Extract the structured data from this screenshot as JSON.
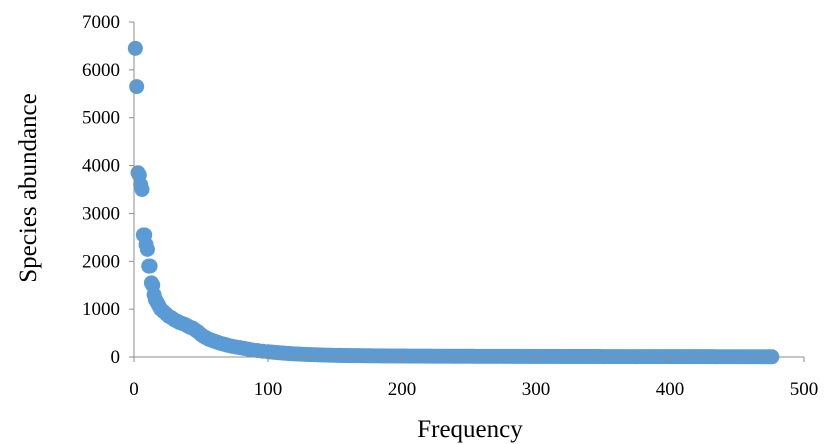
{
  "chart_data": {
    "type": "scatter",
    "title": "",
    "xlabel": "Frequency",
    "ylabel": "Species abundance",
    "xlim": [
      0,
      500
    ],
    "ylim": [
      0,
      7000
    ],
    "x_ticks": [
      "0",
      "100",
      "200",
      "300",
      "400",
      "500"
    ],
    "y_ticks": [
      "0",
      "1000",
      "2000",
      "3000",
      "4000",
      "5000",
      "6000",
      "7000"
    ],
    "grid": false,
    "legend": "none",
    "marker_color": "#5b9bd5",
    "series": [
      {
        "x": [
          1,
          2,
          3,
          4,
          5,
          6,
          7,
          8,
          9,
          10,
          11,
          12,
          13,
          14,
          15,
          16,
          17,
          18,
          19,
          20,
          22,
          24,
          26,
          28,
          30,
          32,
          34,
          36,
          38,
          40,
          42,
          44,
          46,
          48,
          50,
          52,
          54,
          56,
          58,
          60,
          62,
          64,
          66,
          68,
          70,
          73,
          76,
          79,
          82,
          85,
          88,
          92,
          96,
          100,
          104,
          108,
          112,
          116,
          120,
          125,
          130,
          135,
          140,
          145,
          150,
          160,
          170,
          180,
          190,
          200,
          215,
          230,
          245,
          260,
          275,
          290,
          305,
          320,
          335,
          350,
          365,
          380,
          395,
          410,
          425,
          440,
          455,
          470,
          476
        ],
        "y": [
          6450,
          5650,
          3850,
          3800,
          3600,
          3500,
          2550,
          2550,
          2350,
          2250,
          1900,
          1900,
          1550,
          1500,
          1300,
          1200,
          1150,
          1100,
          1050,
          1000,
          950,
          900,
          850,
          820,
          780,
          750,
          720,
          700,
          680,
          650,
          620,
          600,
          560,
          520,
          470,
          430,
          400,
          370,
          350,
          330,
          310,
          290,
          275,
          260,
          245,
          225,
          210,
          195,
          180,
          165,
          150,
          135,
          120,
          110,
          100,
          90,
          80,
          72,
          65,
          58,
          52,
          47,
          42,
          38,
          35,
          30,
          27,
          24,
          22,
          20,
          18,
          16,
          15,
          14,
          13,
          12,
          11,
          10,
          10,
          9,
          9,
          8,
          8,
          7,
          7,
          6,
          6,
          5,
          5
        ]
      }
    ]
  }
}
